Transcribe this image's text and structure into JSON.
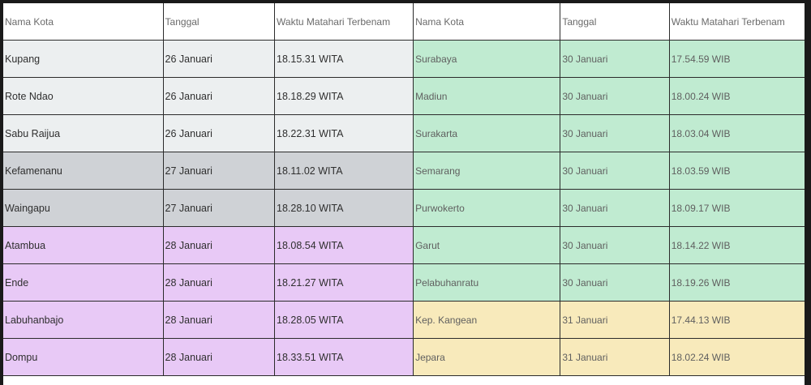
{
  "headers": [
    "Nama Kota",
    "Tanggal",
    "Waktu Matahari Terbenam",
    "Nama Kota",
    "Tanggal",
    "Waktu Matahari Terbenam"
  ],
  "colors": {
    "gray_light": "#eceff0",
    "gray_mid": "#cfd2d6",
    "purple": "#e8c9f6",
    "green": "#c0ebd1",
    "yellow": "#f8eabb"
  },
  "rows": [
    {
      "city": "Kupang",
      "date": "26 Januari",
      "time": "18.15.31 WITA",
      "left_color": "#eceff0",
      "city2": "Surabaya",
      "date2": "30 Januari",
      "time2": "17.54.59 WIB",
      "right_color": "#c0ebd1"
    },
    {
      "city": "Rote Ndao",
      "date": "26 Januari",
      "time": "18.18.29 WITA",
      "left_color": "#eceff0",
      "city2": "Madiun",
      "date2": "30 Januari",
      "time2": "18.00.24 WIB",
      "right_color": "#c0ebd1"
    },
    {
      "city": "Sabu Raijua",
      "date": "26 Januari",
      "time": "18.22.31 WITA",
      "left_color": "#eceff0",
      "city2": "Surakarta",
      "date2": "30 Januari",
      "time2": "18.03.04 WIB",
      "right_color": "#c0ebd1"
    },
    {
      "city": "Kefamenanu",
      "date": "27 Januari",
      "time": "18.11.02 WITA",
      "left_color": "#cfd2d6",
      "city2": "Semarang",
      "date2": "30 Januari",
      "time2": "18.03.59 WIB",
      "right_color": "#c0ebd1"
    },
    {
      "city": "Waingapu",
      "date": "27 Januari",
      "time": "18.28.10 WITA",
      "left_color": "#cfd2d6",
      "city2": "Purwokerto",
      "date2": "30 Januari",
      "time2": "18.09.17 WIB",
      "right_color": "#c0ebd1"
    },
    {
      "city": "Atambua",
      "date": "28 Januari",
      "time": "18.08.54 WITA",
      "left_color": "#e8c9f6",
      "city2": "Garut",
      "date2": "30 Januari",
      "time2": "18.14.22 WIB",
      "right_color": "#c0ebd1"
    },
    {
      "city": "Ende",
      "date": "28 Januari",
      "time": "18.21.27 WITA",
      "left_color": "#e8c9f6",
      "city2": "Pelabuhanratu",
      "date2": "30 Januari",
      "time2": "18.19.26 WIB",
      "right_color": "#c0ebd1"
    },
    {
      "city": "Labuhanbajo",
      "date": "28 Januari",
      "time": "18.28.05 WITA",
      "left_color": "#e8c9f6",
      "city2": "Kep. Kangean",
      "date2": "31 Januari",
      "time2": "17.44.13 WIB",
      "right_color": "#f8eabb"
    },
    {
      "city": "Dompu",
      "date": "28 Januari",
      "time": "18.33.51 WITA",
      "left_color": "#e8c9f6",
      "city2": "Jepara",
      "date2": "31 Januari",
      "time2": "18.02.24 WIB",
      "right_color": "#f8eabb"
    }
  ]
}
